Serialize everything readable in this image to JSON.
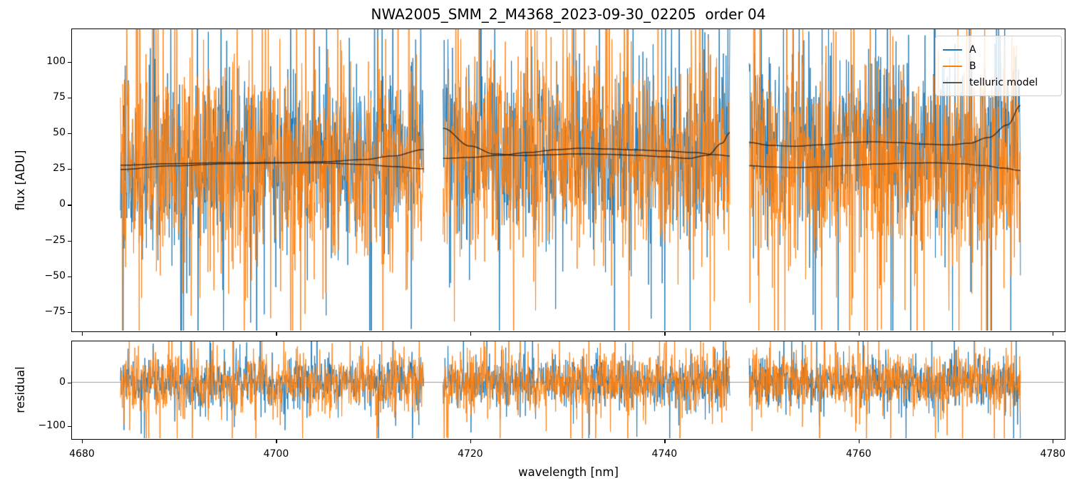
{
  "chart_data": {
    "type": "line",
    "title": "NWA2005_SMM_2_M4368_2023-09-30_02205  order 04",
    "x": {
      "label": "wavelength [nm]",
      "lim": [
        4678.9,
        4781.3
      ],
      "ticks": [
        4680,
        4700,
        4720,
        4740,
        4760,
        4780
      ]
    },
    "panels": {
      "flux": {
        "ylabel": "flux [ADU]",
        "ylim": [
          -88.9,
          123.2
        ],
        "ticks": [
          100,
          75,
          50,
          25,
          0,
          -25,
          -50,
          -75
        ]
      },
      "residual": {
        "ylabel": "residual",
        "ylim": [
          -130.4,
          95.3
        ],
        "ticks": [
          0,
          -100
        ],
        "zero_line": true,
        "zero_line_color": "#999999"
      }
    },
    "legend": [
      {
        "label": "A",
        "color": "#1f77b4"
      },
      {
        "label": "B",
        "color": "#ff7f0e"
      },
      {
        "label": "telluric model",
        "color": "#555555"
      }
    ],
    "segments_nm": [
      [
        4683.9,
        4715.2
      ],
      [
        4717.2,
        4746.8
      ],
      [
        4748.8,
        4776.8
      ]
    ],
    "series": {
      "A": {
        "color": "#1f77b4",
        "alpha": 0.95,
        "sigma_flux": 30,
        "sigma_residual": 27,
        "mean_follows": "model_A"
      },
      "B": {
        "color": "#ff7f0e",
        "alpha": 0.95,
        "sigma_flux": 36,
        "sigma_residual": 34,
        "mean_follows": "model_B"
      }
    },
    "telluric_models": {
      "color": "#141414",
      "alpha": 0.75,
      "model_A": {
        "segments": [
          [
            [
              4683.9,
              24.5
            ],
            [
              4689,
              27.0
            ],
            [
              4695,
              28.5
            ],
            [
              4700,
              29.0
            ],
            [
              4705,
              30.0
            ],
            [
              4709,
              31.5
            ],
            [
              4712,
              34.0
            ],
            [
              4715.2,
              38.5
            ]
          ],
          [
            [
              4717.2,
              53.5
            ],
            [
              4720,
              41.0
            ],
            [
              4722.5,
              35.5
            ],
            [
              4725,
              34.3
            ],
            [
              4728,
              34.8
            ],
            [
              4731,
              35.5
            ],
            [
              4734,
              35.2
            ],
            [
              4737,
              34.5
            ],
            [
              4740,
              33.5
            ],
            [
              4742.5,
              32.3
            ],
            [
              4744.5,
              34.5
            ],
            [
              4746,
              43.0
            ],
            [
              4746.8,
              50.5
            ]
          ],
          [
            [
              4748.8,
              43.5
            ],
            [
              4751,
              41.5
            ],
            [
              4753.5,
              40.8
            ],
            [
              4756,
              41.8
            ],
            [
              4759,
              43.5
            ],
            [
              4761.5,
              44.0
            ],
            [
              4764,
              43.5
            ],
            [
              4767,
              42.3
            ],
            [
              4769.5,
              41.8
            ],
            [
              4771.5,
              43.0
            ],
            [
              4773.5,
              47.0
            ],
            [
              4775.5,
              56.0
            ],
            [
              4776.8,
              69.5
            ]
          ]
        ]
      },
      "model_B": {
        "segments": [
          [
            [
              4683.9,
              27.5
            ],
            [
              4689,
              28.6
            ],
            [
              4695,
              29.3
            ],
            [
              4700,
              29.4
            ],
            [
              4705,
              29.0
            ],
            [
              4709,
              28.0
            ],
            [
              4712,
              26.6
            ],
            [
              4715.2,
              25.0
            ]
          ],
          [
            [
              4717.2,
              32.3
            ],
            [
              4720,
              33.0
            ],
            [
              4723,
              34.5
            ],
            [
              4726,
              36.5
            ],
            [
              4729,
              38.5
            ],
            [
              4731.5,
              39.5
            ],
            [
              4734,
              39.0
            ],
            [
              4737,
              38.3
            ],
            [
              4740,
              37.6
            ],
            [
              4743,
              36.5
            ],
            [
              4745.5,
              34.8
            ],
            [
              4746.8,
              34.0
            ]
          ],
          [
            [
              4748.8,
              27.2
            ],
            [
              4751,
              26.3
            ],
            [
              4753.5,
              25.8
            ],
            [
              4756,
              26.3
            ],
            [
              4759,
              27.3
            ],
            [
              4762,
              28.3
            ],
            [
              4765,
              29.0
            ],
            [
              4768,
              29.2
            ],
            [
              4770.5,
              28.6
            ],
            [
              4773,
              27.3
            ],
            [
              4775,
              25.5
            ],
            [
              4776.8,
              23.8
            ]
          ]
        ]
      }
    },
    "noise": {
      "seed": 42,
      "points_per_segment": 760,
      "spike_prob": 0.09,
      "spike_mult": 2.7,
      "big_spike_prob": 0.02,
      "big_spike_mult": 5
    },
    "colors": {
      "axes": "#000000",
      "text": "#000000",
      "background": "#ffffff"
    }
  }
}
